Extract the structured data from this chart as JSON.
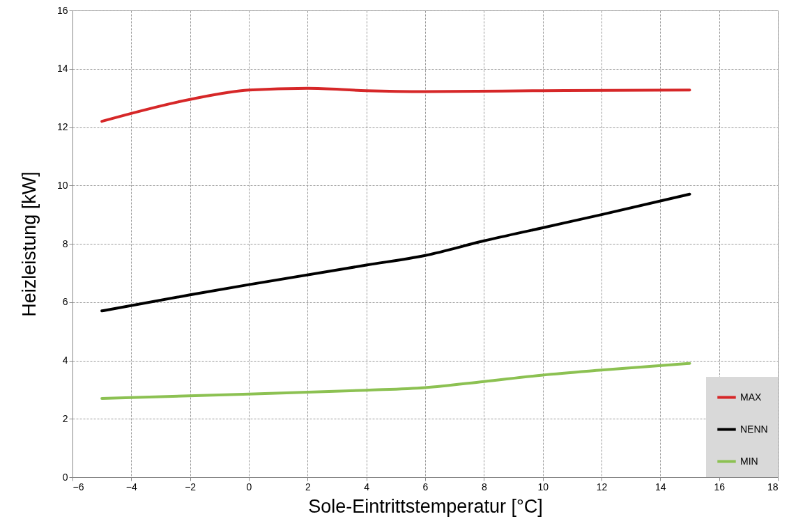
{
  "chart_data": {
    "type": "line",
    "xlabel": "Sole-Eintrittstemperatur [°C]",
    "ylabel": "Heizleistung [kW]",
    "xlim": [
      -6,
      18
    ],
    "xticks": [
      -6,
      -4,
      -2,
      0,
      2,
      4,
      6,
      8,
      10,
      12,
      14,
      16,
      18
    ],
    "ylim": [
      0,
      16
    ],
    "yticks": [
      0,
      2,
      4,
      6,
      8,
      10,
      12,
      14,
      16
    ],
    "grid": true,
    "legend": "bottom right",
    "line_style": "solid",
    "marker": "none",
    "series": [
      {
        "name": "MAX",
        "color": "#d62728",
        "x": [
          -5,
          -2,
          0,
          2,
          4,
          6,
          10,
          15
        ],
        "values": [
          12.2,
          12.95,
          13.27,
          13.33,
          13.25,
          13.22,
          13.25,
          13.27
        ]
      },
      {
        "name": "NENN",
        "color": "#000000",
        "x": [
          -5,
          -2,
          0,
          4,
          6,
          8,
          10,
          12,
          15
        ],
        "values": [
          5.7,
          6.25,
          6.6,
          7.27,
          7.6,
          8.1,
          8.55,
          9.0,
          9.7
        ]
      },
      {
        "name": "MIN",
        "color": "#8cc152",
        "x": [
          -5,
          0,
          4,
          6,
          8,
          10,
          12,
          15
        ],
        "values": [
          2.7,
          2.85,
          2.98,
          3.07,
          3.28,
          3.5,
          3.67,
          3.9
        ]
      }
    ]
  }
}
